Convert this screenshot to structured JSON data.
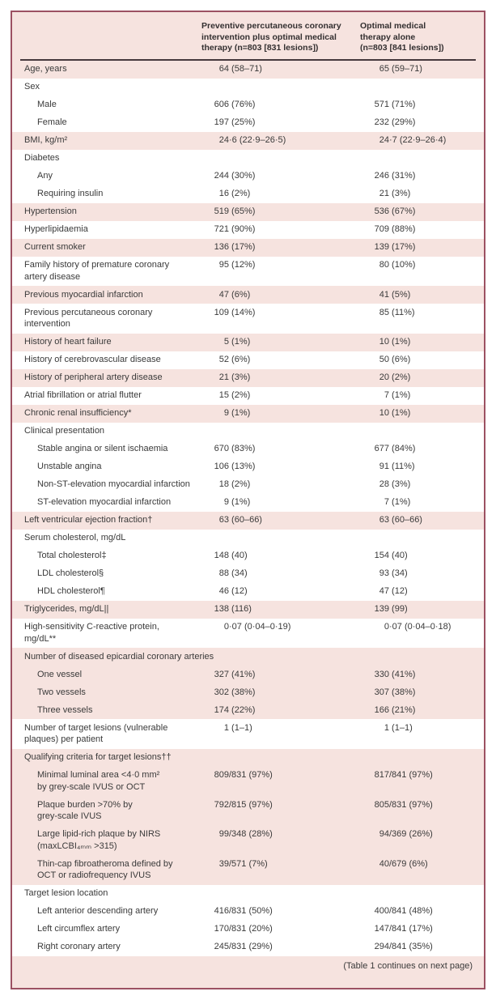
{
  "colors": {
    "table_background_pink": "#f6e3df",
    "row_white": "#ffffff",
    "outer_border": "#9c5162",
    "header_rule": "#46393d",
    "text": "#3a3a3a"
  },
  "table": {
    "header": {
      "col1": "Preventive percutaneous coronary\nintervention plus optimal medical\ntherapy (n=803 [831 lesions])",
      "col2": "Optimal medical\ntherapy alone\n(n=803 [841 lesions])"
    },
    "rows": [
      {
        "label": "Age, years",
        "c1": "64 (58–71)",
        "c2": "65 (59–71)",
        "bg": "pink"
      },
      {
        "label": "Sex",
        "bg": "white"
      },
      {
        "label": "Male",
        "indent": 1,
        "c1": "606 (76%)",
        "c2": "571 (71%)",
        "bg": "white"
      },
      {
        "label": "Female",
        "indent": 1,
        "c1": "197 (25%)",
        "c2": "232 (29%)",
        "bg": "white"
      },
      {
        "label": "BMI, kg/m²",
        "c1": "24·6 (22·9–26·5)",
        "c2": "24·7 (22·9–26·4)",
        "bg": "pink"
      },
      {
        "label": "Diabetes",
        "bg": "white"
      },
      {
        "label": "Any",
        "indent": 1,
        "c1": "244 (30%)",
        "c2": "246 (31%)",
        "bg": "white"
      },
      {
        "label": "Requiring insulin",
        "indent": 1,
        "c1": "16 (2%)",
        "c2": "21 (3%)",
        "bg": "white"
      },
      {
        "label": "Hypertension",
        "c1": "519 (65%)",
        "c2": "536 (67%)",
        "bg": "pink"
      },
      {
        "label": "Hyperlipidaemia",
        "c1": "721 (90%)",
        "c2": "709 (88%)",
        "bg": "white"
      },
      {
        "label": "Current smoker",
        "c1": "136 (17%)",
        "c2": "139 (17%)",
        "bg": "pink"
      },
      {
        "label": "Family history of premature coronary\nartery disease",
        "c1": "95 (12%)",
        "c2": "80 (10%)",
        "bg": "white"
      },
      {
        "label": "Previous myocardial infarction",
        "c1": "47 (6%)",
        "c2": "41 (5%)",
        "bg": "pink"
      },
      {
        "label": "Previous percutaneous coronary\nintervention",
        "c1": "109 (14%)",
        "c2": "85 (11%)",
        "bg": "white"
      },
      {
        "label": "History of heart failure",
        "c1": "5 (1%)",
        "c2": "10 (1%)",
        "bg": "pink"
      },
      {
        "label": "History of cerebrovascular disease",
        "c1": "52 (6%)",
        "c2": "50 (6%)",
        "bg": "white"
      },
      {
        "label": "History of peripheral artery disease",
        "c1": "21 (3%)",
        "c2": "20 (2%)",
        "bg": "pink"
      },
      {
        "label": "Atrial fibrillation or atrial flutter",
        "c1": "15 (2%)",
        "c2": "7 (1%)",
        "bg": "white"
      },
      {
        "label": "Chronic renal insufficiency*",
        "c1": "9 (1%)",
        "c2": "10 (1%)",
        "bg": "pink"
      },
      {
        "label": "Clinical presentation",
        "bg": "white"
      },
      {
        "label": "Stable angina or silent ischaemia",
        "indent": 1,
        "c1": "670 (83%)",
        "c2": "677 (84%)",
        "bg": "white"
      },
      {
        "label": "Unstable angina",
        "indent": 1,
        "c1": "106 (13%)",
        "c2": "91 (11%)",
        "bg": "white"
      },
      {
        "label": "Non-ST-elevation myocardial infarction",
        "indent": 1,
        "c1": "18 (2%)",
        "c2": "28 (3%)",
        "bg": "white"
      },
      {
        "label": "ST-elevation myocardial infarction",
        "indent": 1,
        "c1": "9 (1%)",
        "c2": "7 (1%)",
        "bg": "white"
      },
      {
        "label": "Left ventricular ejection fraction†",
        "c1": "63 (60–66)",
        "c2": "63 (60–66)",
        "bg": "pink"
      },
      {
        "label": "Serum cholesterol, mg/dL",
        "bg": "white"
      },
      {
        "label": "Total cholesterol‡",
        "indent": 1,
        "c1": "148 (40)",
        "c2": "154 (40)",
        "bg": "white"
      },
      {
        "label": "LDL cholesterol§",
        "indent": 1,
        "c1": "88 (34)",
        "c2": "93 (34)",
        "bg": "white"
      },
      {
        "label": "HDL cholesterol¶",
        "indent": 1,
        "c1": "46 (12)",
        "c2": "47 (12)",
        "bg": "white"
      },
      {
        "label": "Triglycerides, mg/dL||",
        "c1": "138 (116)",
        "c2": "139 (99)",
        "bg": "pink"
      },
      {
        "label": "High-sensitivity C-reactive protein,\nmg/dL**",
        "c1": "0·07 (0·04–0·19)",
        "c2": "0·07 (0·04–0·18)",
        "bg": "white"
      },
      {
        "label": "Number of diseased epicardial coronary arteries",
        "bg": "pink"
      },
      {
        "label": "One vessel",
        "indent": 1,
        "c1": "327 (41%)",
        "c2": "330 (41%)",
        "bg": "pink"
      },
      {
        "label": "Two vessels",
        "indent": 1,
        "c1": "302 (38%)",
        "c2": "307 (38%)",
        "bg": "pink"
      },
      {
        "label": "Three vessels",
        "indent": 1,
        "c1": "174 (22%)",
        "c2": "166 (21%)",
        "bg": "pink"
      },
      {
        "label": "Number of target lesions (vulnerable\nplaques) per patient",
        "c1": "1 (1–1)",
        "c2": "1 (1–1)",
        "bg": "white"
      },
      {
        "label": "Qualifying criteria for target lesions††",
        "bg": "pink"
      },
      {
        "label": "Minimal luminal area <4·0 mm²\nby grey-scale IVUS or OCT",
        "indent": 1,
        "c1": "809/831 (97%)",
        "c2": "817/841 (97%)",
        "bg": "pink"
      },
      {
        "label": "Plaque burden >70% by\ngrey-scale IVUS",
        "indent": 1,
        "c1": "792/815 (97%)",
        "c2": "805/831 (97%)",
        "bg": "pink"
      },
      {
        "label": "Large lipid-rich plaque by NIRS\n(maxLCBI₄ₘₘ >315)",
        "indent": 1,
        "c1": "99/348 (28%)",
        "c2": "94/369 (26%)",
        "bg": "pink"
      },
      {
        "label": "Thin-cap fibroatheroma defined by\nOCT or radiofrequency IVUS",
        "indent": 1,
        "c1": "39/571 (7%)",
        "c2": "40/679 (6%)",
        "bg": "pink"
      },
      {
        "label": "Target lesion location",
        "bg": "white"
      },
      {
        "label": "Left anterior descending artery",
        "indent": 1,
        "c1": "416/831 (50%)",
        "c2": "400/841 (48%)",
        "bg": "white"
      },
      {
        "label": "Left circumflex artery",
        "indent": 1,
        "c1": "170/831 (20%)",
        "c2": "147/841 (17%)",
        "bg": "white"
      },
      {
        "label": "Right coronary artery",
        "indent": 1,
        "c1": "245/831 (29%)",
        "c2": "294/841 (35%)",
        "bg": "white"
      }
    ],
    "footer": "(Table 1 continues on next page)"
  }
}
